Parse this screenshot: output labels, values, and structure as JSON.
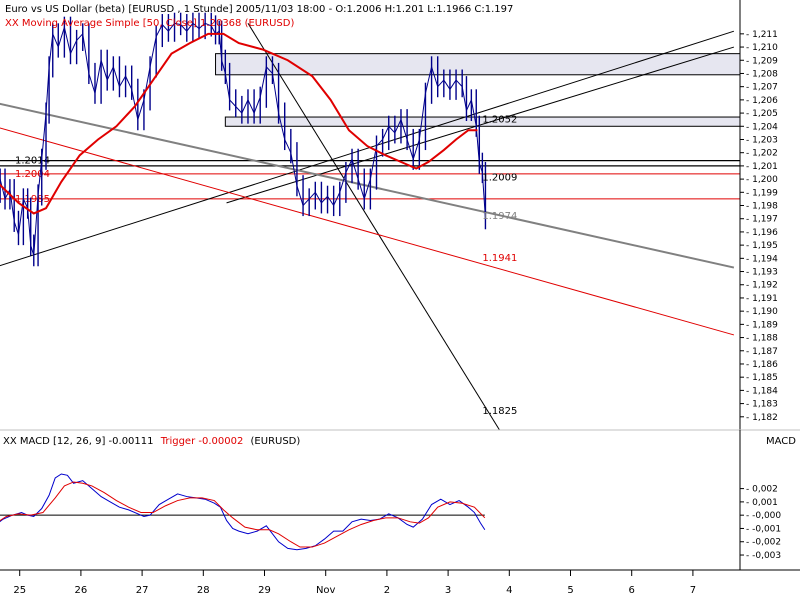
{
  "main_header": {
    "instrument": "Euro vs US Dollar (beta) [EURUSD , 1 Stunde] 2005/11/03 18:00 - O:1.2006 H:1.201 L:1.1966 C:1.197",
    "ma_legend": "XX Moving Average Simple [50, Close] 1.20368 (EURUSD)"
  },
  "macd_header": {
    "prefix": "XX MACD [12, 26, 9] -0.00111",
    "trigger": "Trigger -0.00002",
    "suffix": "(EURUSD)",
    "axis_title": "MACD"
  },
  "colors": {
    "background": "#ffffff",
    "price_bars": "#00008b",
    "moving_average": "#e00000",
    "macd_line": "#0000cc",
    "trigger_line": "#e00000",
    "trend_black": "#000000",
    "trend_gray": "#808080",
    "trend_red": "#e00000",
    "zone_fill": "#e6e6f0"
  },
  "chart_data": [
    {
      "type": "ohlc",
      "title": "Euro vs US Dollar (beta) [EURUSD , 1 Stunde]",
      "ylim": [
        1.181,
        1.2122
      ],
      "y_ticks": [
        "1,211",
        "1,210",
        "1,209",
        "1,208",
        "1,207",
        "1,206",
        "1,205",
        "1,204",
        "1,203",
        "1,202",
        "1,201",
        "1,200",
        "1,199",
        "1,198",
        "1,197",
        "1,196",
        "1,195",
        "1,194",
        "1,193",
        "1,192",
        "1,191",
        "1,190",
        "1,189",
        "1,188",
        "1,187",
        "1,186",
        "1,185",
        "1,184",
        "1,183",
        "1,182"
      ],
      "x_labels": [
        {
          "label": "25",
          "t": 0.5
        },
        {
          "label": "26",
          "t": 1.5
        },
        {
          "label": "27",
          "t": 2.5
        },
        {
          "label": "28",
          "t": 3.5
        },
        {
          "label": "29",
          "t": 4.5
        },
        {
          "label": "Nov",
          "t": 5.5
        },
        {
          "label": "2",
          "t": 6.5
        },
        {
          "label": "3",
          "t": 7.5
        },
        {
          "label": "4",
          "t": 8.5
        },
        {
          "label": "5",
          "t": 9.5
        },
        {
          "label": "6",
          "t": 10.5
        },
        {
          "label": "7",
          "t": 11.5
        }
      ],
      "price_points": [
        [
          0.0,
          1.199
        ],
        [
          0.1,
          1.2
        ],
        [
          0.18,
          1.1985
        ],
        [
          0.26,
          1.1992
        ],
        [
          0.33,
          1.1968
        ],
        [
          0.4,
          1.1958
        ],
        [
          0.48,
          1.1985
        ],
        [
          0.55,
          1.1978
        ],
        [
          0.6,
          1.195
        ],
        [
          0.65,
          1.1942
        ],
        [
          0.72,
          1.1988
        ],
        [
          0.78,
          1.2015
        ],
        [
          0.85,
          1.205
        ],
        [
          0.9,
          1.2085
        ],
        [
          0.96,
          1.211
        ],
        [
          1.05,
          1.21
        ],
        [
          1.15,
          1.2115
        ],
        [
          1.25,
          1.2095
        ],
        [
          1.35,
          1.2105
        ],
        [
          1.45,
          1.211
        ],
        [
          1.55,
          1.208
        ],
        [
          1.65,
          1.2065
        ],
        [
          1.75,
          1.209
        ],
        [
          1.85,
          1.2075
        ],
        [
          1.95,
          1.2085
        ],
        [
          2.05,
          1.207
        ],
        [
          2.15,
          1.2078
        ],
        [
          2.25,
          1.2068
        ],
        [
          2.35,
          1.2045
        ],
        [
          2.45,
          1.206
        ],
        [
          2.55,
          1.2085
        ],
        [
          2.65,
          1.2108
        ],
        [
          2.75,
          1.2117
        ],
        [
          2.85,
          1.2112
        ],
        [
          2.95,
          1.2118
        ],
        [
          3.05,
          1.2117
        ],
        [
          3.15,
          1.2112
        ],
        [
          3.25,
          1.2118
        ],
        [
          3.35,
          1.2114
        ],
        [
          3.45,
          1.2118
        ],
        [
          3.55,
          1.2116
        ],
        [
          3.62,
          1.211
        ],
        [
          3.68,
          1.2112
        ],
        [
          3.72,
          1.209
        ],
        [
          3.78,
          1.208
        ],
        [
          3.85,
          1.206
        ],
        [
          3.95,
          1.2055
        ],
        [
          4.05,
          1.205
        ],
        [
          4.15,
          1.206
        ],
        [
          4.25,
          1.205
        ],
        [
          4.35,
          1.2062
        ],
        [
          4.45,
          1.2085
        ],
        [
          4.55,
          1.208
        ],
        [
          4.65,
          1.205
        ],
        [
          4.75,
          1.203
        ],
        [
          4.85,
          1.202
        ],
        [
          4.95,
          1.1995
        ],
        [
          5.05,
          1.198
        ],
        [
          5.15,
          1.1985
        ],
        [
          5.25,
          1.199
        ],
        [
          5.35,
          1.1982
        ],
        [
          5.45,
          1.1987
        ],
        [
          5.55,
          1.198
        ],
        [
          5.65,
          1.199
        ],
        [
          5.75,
          1.2005
        ],
        [
          5.85,
          1.2015
        ],
        [
          5.95,
          1.2
        ],
        [
          6.05,
          1.1985
        ],
        [
          6.15,
          1.2
        ],
        [
          6.25,
          1.2025
        ],
        [
          6.35,
          1.203
        ],
        [
          6.45,
          1.204
        ],
        [
          6.55,
          1.2035
        ],
        [
          6.65,
          1.2045
        ],
        [
          6.75,
          1.203
        ],
        [
          6.85,
          1.2015
        ],
        [
          6.95,
          1.203
        ],
        [
          7.05,
          1.2065
        ],
        [
          7.15,
          1.2085
        ],
        [
          7.25,
          1.207
        ],
        [
          7.35,
          1.2075
        ],
        [
          7.45,
          1.2068
        ],
        [
          7.55,
          1.2075
        ],
        [
          7.65,
          1.207
        ],
        [
          7.72,
          1.2052
        ],
        [
          7.8,
          1.206
        ],
        [
          7.88,
          1.204
        ],
        [
          7.93,
          1.2012
        ],
        [
          7.98,
          1.2005
        ],
        [
          8.03,
          1.197
        ]
      ],
      "moving_average": [
        [
          0.0,
          1.2
        ],
        [
          0.4,
          1.1982
        ],
        [
          0.65,
          1.1974
        ],
        [
          0.85,
          1.1978
        ],
        [
          1.1,
          1.1998
        ],
        [
          1.4,
          1.2018
        ],
        [
          1.7,
          1.203
        ],
        [
          2.0,
          1.204
        ],
        [
          2.3,
          1.2055
        ],
        [
          2.6,
          1.2075
        ],
        [
          2.9,
          1.2095
        ],
        [
          3.2,
          1.2103
        ],
        [
          3.5,
          1.211
        ],
        [
          3.75,
          1.211
        ],
        [
          4.0,
          1.2103
        ],
        [
          4.4,
          1.2098
        ],
        [
          4.8,
          1.209
        ],
        [
          5.2,
          1.2078
        ],
        [
          5.5,
          1.206
        ],
        [
          5.8,
          1.2037
        ],
        [
          6.1,
          1.2025
        ],
        [
          6.4,
          1.2018
        ],
        [
          6.7,
          1.2012
        ],
        [
          6.9,
          1.2008
        ],
        [
          7.1,
          1.2013
        ],
        [
          7.35,
          1.2022
        ],
        [
          7.55,
          1.203
        ],
        [
          7.75,
          1.2037
        ],
        [
          7.9,
          1.2037
        ]
      ],
      "horizontal_lines": [
        {
          "value": 1.2014,
          "label": "1.2014",
          "color": "#000000"
        },
        {
          "value": 1.201,
          "label": "",
          "color": "#000000"
        },
        {
          "value": 1.2004,
          "label": "1.2004",
          "color": "#e00000"
        },
        {
          "value": 1.1985,
          "label": "1.1985",
          "color": "#e00000"
        }
      ],
      "zones": [
        {
          "from": 1.2079,
          "to": 1.2095,
          "t_start": 3.62
        },
        {
          "from": 1.204,
          "to": 1.2047,
          "t_start": 3.78
        }
      ],
      "trend_lines": [
        {
          "t1": 0.0,
          "v1": 1.1933,
          "t2": 12.09,
          "v2": 1.2112,
          "color": "#000000",
          "width": 1
        },
        {
          "t1": 3.8,
          "v1": 1.1982,
          "t2": 12.09,
          "v2": 1.21,
          "color": "#000000",
          "width": 1
        },
        {
          "t1": 4.15,
          "v1": 1.2118,
          "t2": 8.26,
          "v2": 1.181,
          "color": "#000000",
          "width": 1
        },
        {
          "t1": 0.0,
          "v1": 1.2058,
          "t2": 12.09,
          "v2": 1.1933,
          "color": "#808080",
          "width": 2
        },
        {
          "t1": 0.0,
          "v1": 1.204,
          "t2": 12.09,
          "v2": 1.1882,
          "color": "#e00000",
          "width": 1
        }
      ],
      "value_labels": [
        {
          "text": "1.2052",
          "t": 7.98,
          "v": 1.2046,
          "color": "#000000"
        },
        {
          "text": "1.2009",
          "t": 7.98,
          "v": 1.2002,
          "color": "#000000"
        },
        {
          "text": "1.1974",
          "t": 7.98,
          "v": 1.1973,
          "color": "#808080"
        },
        {
          "text": "1.1941",
          "t": 7.98,
          "v": 1.1941,
          "color": "#e00000"
        },
        {
          "text": "1.1825",
          "t": 7.98,
          "v": 1.1825,
          "color": "#000000"
        }
      ]
    },
    {
      "type": "line",
      "title": "XX MACD [12, 26, 9]",
      "ylim": [
        -0.0036,
        0.0034
      ],
      "y_ticks": [
        "0,002",
        "0,001",
        "-0,000",
        "-0,001",
        "-0,002",
        "-0,003"
      ],
      "series": [
        {
          "name": "MACD",
          "points": [
            [
              0.0,
              -0.0008
            ],
            [
              0.15,
              -0.0003
            ],
            [
              0.3,
              0.0
            ],
            [
              0.45,
              0.0002
            ],
            [
              0.55,
              0.0
            ],
            [
              0.65,
              -0.0001
            ],
            [
              0.78,
              0.0005
            ],
            [
              0.9,
              0.0015
            ],
            [
              1.0,
              0.0028
            ],
            [
              1.1,
              0.0031
            ],
            [
              1.2,
              0.003
            ],
            [
              1.3,
              0.0024
            ],
            [
              1.45,
              0.0026
            ],
            [
              1.6,
              0.002
            ],
            [
              1.75,
              0.0014
            ],
            [
              1.9,
              0.001
            ],
            [
              2.05,
              0.0006
            ],
            [
              2.2,
              0.0004
            ],
            [
              2.35,
              0.0001
            ],
            [
              2.45,
              -0.0001
            ],
            [
              2.55,
              0.0
            ],
            [
              2.7,
              0.0008
            ],
            [
              2.85,
              0.0012
            ],
            [
              3.0,
              0.0016
            ],
            [
              3.15,
              0.0014
            ],
            [
              3.3,
              0.0013
            ],
            [
              3.45,
              0.0012
            ],
            [
              3.6,
              0.0009
            ],
            [
              3.7,
              0.0006
            ],
            [
              3.8,
              -0.0004
            ],
            [
              3.9,
              -0.001
            ],
            [
              4.0,
              -0.0012
            ],
            [
              4.15,
              -0.0014
            ],
            [
              4.3,
              -0.0012
            ],
            [
              4.45,
              -0.0008
            ],
            [
              4.55,
              -0.0014
            ],
            [
              4.65,
              -0.002
            ],
            [
              4.8,
              -0.0025
            ],
            [
              4.95,
              -0.0026
            ],
            [
              5.1,
              -0.0025
            ],
            [
              5.25,
              -0.0023
            ],
            [
              5.4,
              -0.0018
            ],
            [
              5.55,
              -0.0012
            ],
            [
              5.7,
              -0.0012
            ],
            [
              5.85,
              -0.0005
            ],
            [
              6.0,
              -0.0003
            ],
            [
              6.15,
              -0.0004
            ],
            [
              6.3,
              -0.0003
            ],
            [
              6.45,
              0.0001
            ],
            [
              6.6,
              -0.0002
            ],
            [
              6.75,
              -0.0007
            ],
            [
              6.85,
              -0.0009
            ],
            [
              7.0,
              -0.0003
            ],
            [
              7.15,
              0.0008
            ],
            [
              7.3,
              0.0012
            ],
            [
              7.45,
              0.0008
            ],
            [
              7.6,
              0.0011
            ],
            [
              7.75,
              0.0006
            ],
            [
              7.85,
              0.0002
            ],
            [
              7.95,
              -0.0006
            ],
            [
              8.02,
              -0.0011
            ]
          ]
        },
        {
          "name": "Trigger",
          "points": [
            [
              0.0,
              -0.0007
            ],
            [
              0.2,
              -0.0001
            ],
            [
              0.4,
              0.0001
            ],
            [
              0.6,
              0.0
            ],
            [
              0.8,
              0.0002
            ],
            [
              1.0,
              0.0013
            ],
            [
              1.15,
              0.0022
            ],
            [
              1.3,
              0.0025
            ],
            [
              1.45,
              0.0024
            ],
            [
              1.6,
              0.0022
            ],
            [
              1.8,
              0.0017
            ],
            [
              2.0,
              0.0011
            ],
            [
              2.2,
              0.0006
            ],
            [
              2.4,
              0.0002
            ],
            [
              2.6,
              0.0002
            ],
            [
              2.8,
              0.0007
            ],
            [
              3.0,
              0.0011
            ],
            [
              3.2,
              0.0013
            ],
            [
              3.4,
              0.0013
            ],
            [
              3.6,
              0.0011
            ],
            [
              3.75,
              0.0004
            ],
            [
              3.9,
              -0.0002
            ],
            [
              4.1,
              -0.0009
            ],
            [
              4.3,
              -0.0011
            ],
            [
              4.5,
              -0.0011
            ],
            [
              4.65,
              -0.0014
            ],
            [
              4.85,
              -0.002
            ],
            [
              5.0,
              -0.0024
            ],
            [
              5.2,
              -0.0024
            ],
            [
              5.4,
              -0.0021
            ],
            [
              5.6,
              -0.0016
            ],
            [
              5.8,
              -0.0011
            ],
            [
              6.0,
              -0.0007
            ],
            [
              6.2,
              -0.0004
            ],
            [
              6.4,
              -0.0002
            ],
            [
              6.6,
              -0.0002
            ],
            [
              6.8,
              -0.0005
            ],
            [
              6.95,
              -0.0006
            ],
            [
              7.1,
              -0.0002
            ],
            [
              7.25,
              0.0006
            ],
            [
              7.45,
              0.001
            ],
            [
              7.65,
              0.0009
            ],
            [
              7.85,
              0.0006
            ],
            [
              8.02,
              -0.0002
            ]
          ]
        }
      ],
      "zero_line": 0.0
    }
  ]
}
